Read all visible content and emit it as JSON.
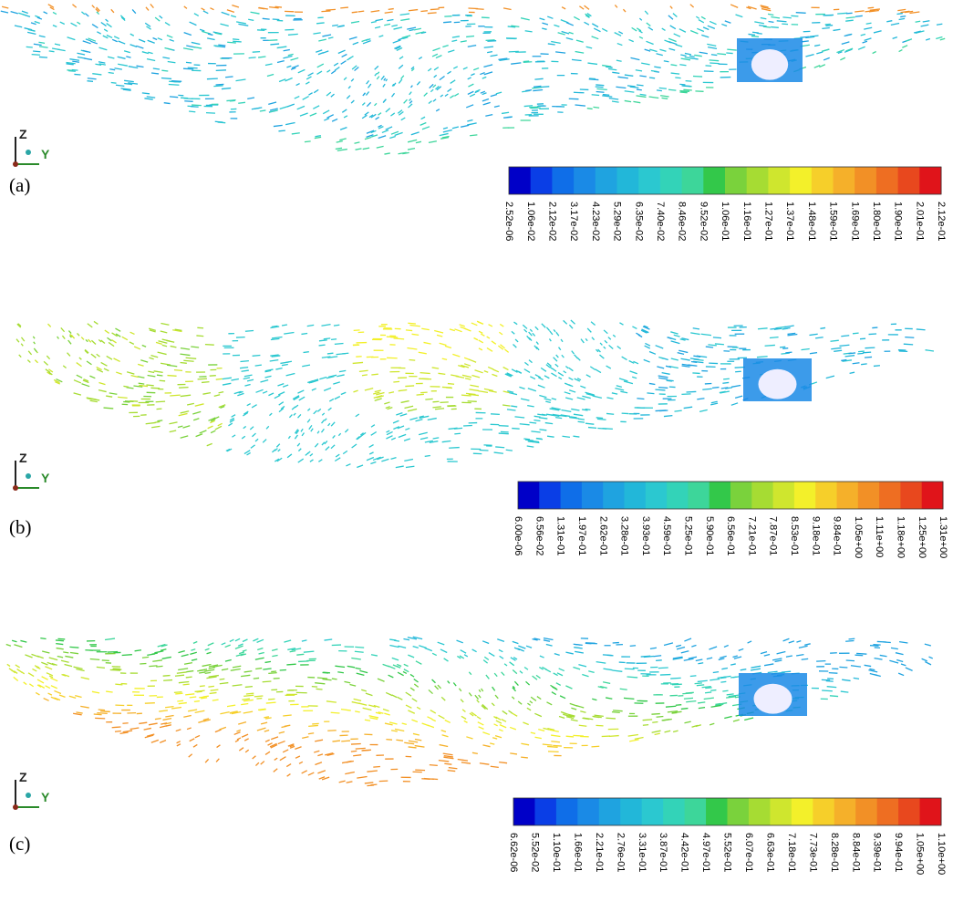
{
  "panels": [
    {
      "label": "(a)",
      "axes": {
        "z": "Z",
        "y": "Y"
      },
      "colorbar": {
        "colors": [
          "#0000c8",
          "#0a3ee6",
          "#0f6ee8",
          "#1a8ae6",
          "#1fa3e0",
          "#22b7d9",
          "#2bc8d0",
          "#33d3b8",
          "#3dd69a",
          "#33c84a",
          "#7ad23c",
          "#a6dc33",
          "#cfe62e",
          "#f3f02a",
          "#f6cf2a",
          "#f5b02a",
          "#f29026",
          "#ee6e22",
          "#e8481e",
          "#e0141a"
        ],
        "labels": [
          "2.52e-06",
          "1.06e-02",
          "2.12e-02",
          "3.17e-02",
          "4.23e-02",
          "5.29e-02",
          "6.35e-02",
          "7.40e-02",
          "8.46e-02",
          "9.52e-02",
          "1.06e-01",
          "1.16e-01",
          "1.27e-01",
          "1.37e-01",
          "1.48e-01",
          "1.59e-01",
          "1.69e-01",
          "1.80e-01",
          "1.90e-01",
          "2.01e-01",
          "2.12e-01"
        ]
      }
    },
    {
      "label": "(b)",
      "axes": {
        "z": "Z",
        "y": "Y"
      },
      "colorbar": {
        "colors": [
          "#0000c8",
          "#0a3ee6",
          "#0f6ee8",
          "#1a8ae6",
          "#1fa3e0",
          "#22b7d9",
          "#2bc8d0",
          "#33d3b8",
          "#3dd69a",
          "#33c84a",
          "#7ad23c",
          "#a6dc33",
          "#cfe62e",
          "#f3f02a",
          "#f6cf2a",
          "#f5b02a",
          "#f29026",
          "#ee6e22",
          "#e8481e",
          "#e0141a"
        ],
        "labels": [
          "6.00e-06",
          "6.56e-02",
          "1.31e-01",
          "1.97e-01",
          "2.62e-01",
          "3.28e-01",
          "3.93e-01",
          "4.59e-01",
          "5.25e-01",
          "5.90e-01",
          "6.56e-01",
          "7.21e-01",
          "7.87e-01",
          "8.53e-01",
          "9.18e-01",
          "9.84e-01",
          "1.05e+00",
          "1.11e+00",
          "1.18e+00",
          "1.25e+00",
          "1.31e+00"
        ]
      }
    },
    {
      "label": "(c)",
      "axes": {
        "z": "Z",
        "y": "Y"
      },
      "colorbar": {
        "colors": [
          "#0000c8",
          "#0a3ee6",
          "#0f6ee8",
          "#1a8ae6",
          "#1fa3e0",
          "#22b7d9",
          "#2bc8d0",
          "#33d3b8",
          "#3dd69a",
          "#33c84a",
          "#7ad23c",
          "#a6dc33",
          "#cfe62e",
          "#f3f02a",
          "#f6cf2a",
          "#f5b02a",
          "#f29026",
          "#ee6e22",
          "#e8481e",
          "#e0141a"
        ],
        "labels": [
          "6.62e-06",
          "5.52e-02",
          "1.10e-01",
          "1.66e-01",
          "2.21e-01",
          "2.76e-01",
          "3.31e-01",
          "3.87e-01",
          "4.42e-01",
          "4.97e-01",
          "5.52e-01",
          "6.07e-01",
          "6.63e-01",
          "7.18e-01",
          "7.73e-01",
          "8.28e-01",
          "8.84e-01",
          "9.39e-01",
          "9.94e-01",
          "1.05e+00",
          "1.10e+00"
        ]
      }
    }
  ]
}
